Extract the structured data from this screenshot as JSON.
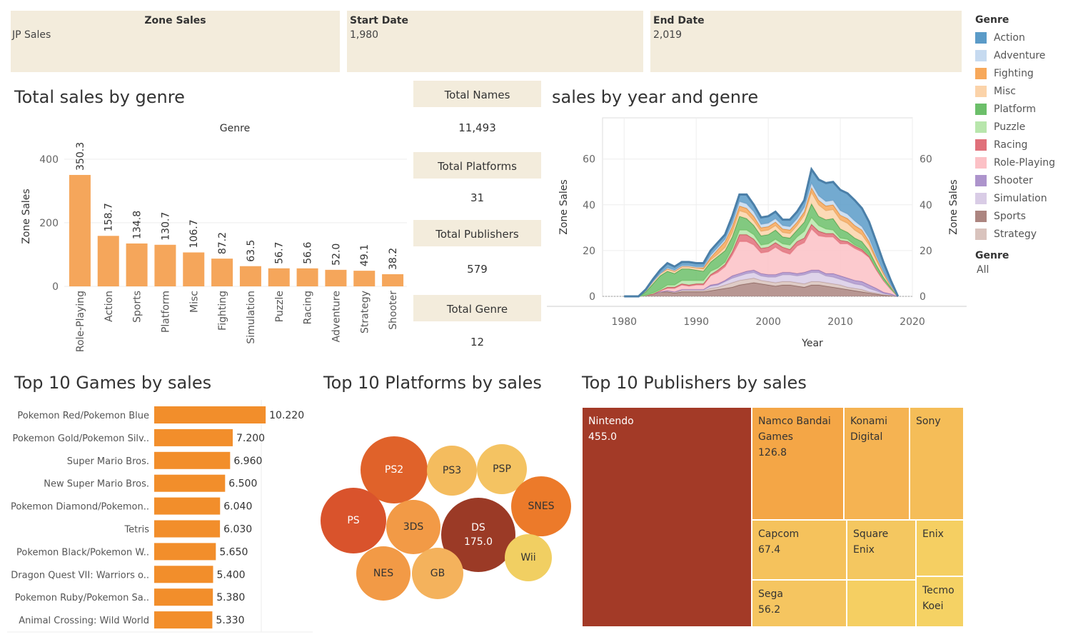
{
  "filters": {
    "zone": {
      "title": "Zone Sales",
      "value": "JP Sales"
    },
    "start": {
      "title": "Start Date",
      "value": "1,980"
    },
    "end": {
      "title": "End Date",
      "value": "2,019"
    }
  },
  "legend": {
    "title": "Genre",
    "items": [
      {
        "label": "Action",
        "color": "#5b9bc8"
      },
      {
        "label": "Adventure",
        "color": "#c6daf0"
      },
      {
        "label": "Fighting",
        "color": "#f7a85a"
      },
      {
        "label": "Misc",
        "color": "#fbd3a9"
      },
      {
        "label": "Platform",
        "color": "#6cbf6a"
      },
      {
        "label": "Puzzle",
        "color": "#b8e6ac"
      },
      {
        "label": "Racing",
        "color": "#e0707a"
      },
      {
        "label": "Role-Playing",
        "color": "#fcc1c6"
      },
      {
        "label": "Shooter",
        "color": "#ad94cc"
      },
      {
        "label": "Simulation",
        "color": "#d9cce6"
      },
      {
        "label": "Sports",
        "color": "#ac8580"
      },
      {
        "label": "Strategy",
        "color": "#d9c3bd"
      }
    ],
    "filter_title": "Genre",
    "filter_value": "All"
  },
  "titles": {
    "genre": "Total sales by genre",
    "year": "sales by year and genre",
    "games": "Top 10 Games by sales",
    "platforms": "Top 10 Platforms by sales",
    "publishers": "Top 10 Publishers by sales"
  },
  "kpis": [
    {
      "label": "Total Names",
      "value": "11,493"
    },
    {
      "label": "Total Platforms",
      "value": "31"
    },
    {
      "label": "Total Publishers",
      "value": "579"
    },
    {
      "label": "Total Genre",
      "value": "12"
    }
  ],
  "chart_data": [
    {
      "type": "bar",
      "title": "Total sales by genre",
      "header": "Genre",
      "ylabel": "Zone Sales",
      "color": "#f5a65b",
      "categories": [
        "Role-Playing",
        "Action",
        "Sports",
        "Platform",
        "Misc",
        "Fighting",
        "Simulation",
        "Puzzle",
        "Racing",
        "Adventure",
        "Strategy",
        "Shooter"
      ],
      "values": [
        350.3,
        158.7,
        134.8,
        130.7,
        106.7,
        87.2,
        63.5,
        56.7,
        56.6,
        52.0,
        49.1,
        38.2
      ],
      "labels": [
        "350.3",
        "158.7",
        "134.8",
        "130.7",
        "106.7",
        "87.2",
        "63.5",
        "56.7",
        "56.6",
        "52.0",
        "49.1",
        "38.2"
      ],
      "yticks": [
        "0",
        "200",
        "400"
      ],
      "ylim": [
        0,
        440
      ]
    },
    {
      "type": "area",
      "title": "sales by year and genre",
      "xlabel": "Year",
      "ylabel": "Zone Sales",
      "ylabel_right": "Zone Sales",
      "xticks": [
        "1980",
        "1990",
        "2000",
        "2010",
        "2020"
      ],
      "yticks": [
        "0",
        "20",
        "40",
        "60"
      ],
      "xlim": [
        1977,
        2020
      ],
      "ylim": [
        0,
        78
      ],
      "x": [
        1980,
        1981,
        1982,
        1983,
        1984,
        1985,
        1986,
        1987,
        1988,
        1989,
        1990,
        1991,
        1992,
        1993,
        1994,
        1995,
        1996,
        1997,
        1998,
        1999,
        2000,
        2001,
        2002,
        2003,
        2004,
        2005,
        2006,
        2007,
        2008,
        2009,
        2010,
        2011,
        2012,
        2013,
        2014,
        2015,
        2016,
        2017,
        2018
      ],
      "series": [
        {
          "name": "Sports",
          "values": [
            0,
            0,
            0,
            0.5,
            1,
            2,
            2,
            1.5,
            2,
            2,
            2,
            2,
            2.5,
            3,
            3.5,
            4,
            5,
            5.5,
            6,
            5.5,
            5,
            4.5,
            5,
            5,
            4.5,
            4,
            5,
            5,
            4.5,
            4,
            3.5,
            3,
            2.5,
            2,
            1.5,
            1,
            0.5,
            0.3,
            0
          ]
        },
        {
          "name": "Strategy",
          "values": [
            0,
            0,
            0,
            0,
            0,
            0,
            0.5,
            0.5,
            0.5,
            0.5,
            0.5,
            0.5,
            1,
            1,
            1.5,
            2,
            2,
            2,
            2,
            1.5,
            1.5,
            1.5,
            1.5,
            1.5,
            1.5,
            1.5,
            1.5,
            1.5,
            1.5,
            1.5,
            1.5,
            1,
            1,
            1,
            0.5,
            0.5,
            0.3,
            0.2,
            0
          ]
        },
        {
          "name": "Simulation",
          "values": [
            0,
            0,
            0,
            0,
            0,
            0,
            0,
            0,
            0.5,
            0.5,
            0.5,
            0.5,
            1,
            1,
            1.5,
            2,
            2,
            2.5,
            2.5,
            2,
            2,
            2.5,
            3,
            3,
            3,
            4,
            4,
            4,
            3,
            3,
            2.5,
            2.5,
            2,
            2,
            1.5,
            1,
            0.5,
            0.3,
            0
          ]
        },
        {
          "name": "Shooter",
          "values": [
            0,
            0,
            0,
            0,
            0,
            0,
            0,
            0,
            0,
            0,
            0,
            0,
            0.5,
            0.5,
            0.5,
            1,
            1,
            1,
            1,
            1,
            1,
            1,
            1,
            1,
            1,
            1,
            1,
            1,
            1,
            1.5,
            1.5,
            1.5,
            1.5,
            1.5,
            1.5,
            1,
            0.5,
            0.3,
            0
          ]
        },
        {
          "name": "Role-Playing",
          "values": [
            0,
            0,
            0,
            0,
            0,
            0.5,
            1,
            1.5,
            2,
            1.5,
            2,
            2,
            4,
            5,
            6,
            9,
            14,
            13,
            11,
            9,
            10,
            12,
            9,
            8,
            12,
            13,
            18,
            15,
            16,
            16,
            14,
            15,
            14,
            13,
            12,
            8,
            5,
            2,
            0
          ]
        },
        {
          "name": "Racing",
          "values": [
            0,
            0,
            0,
            0,
            0,
            0,
            0.5,
            0.5,
            0.5,
            0.5,
            0.5,
            0.5,
            0.5,
            1,
            1,
            1.5,
            3,
            3,
            2.5,
            2,
            2,
            2,
            2,
            2,
            2,
            2,
            2,
            2,
            1.5,
            1.5,
            1.5,
            1,
            1,
            1,
            0.5,
            0.5,
            0.3,
            0.2,
            0
          ]
        },
        {
          "name": "Puzzle",
          "values": [
            0,
            0,
            0,
            0,
            0.5,
            0.5,
            1,
            1,
            1.5,
            2,
            1.5,
            1.5,
            1.5,
            1,
            1,
            1.5,
            2,
            2,
            2,
            1.5,
            1.5,
            1.5,
            1.5,
            2,
            2,
            3,
            3,
            2.5,
            2,
            1.5,
            1,
            1,
            0.5,
            0.5,
            0.5,
            0.3,
            0.2,
            0.1,
            0
          ]
        },
        {
          "name": "Platform",
          "values": [
            0,
            0,
            0,
            1.5,
            4,
            6,
            6,
            5,
            5,
            5,
            4.5,
            4,
            4,
            5,
            5,
            5,
            6,
            5,
            4,
            4,
            4,
            4,
            3,
            3,
            3,
            4,
            6,
            4,
            4,
            5,
            4,
            3,
            3,
            3,
            2,
            1.5,
            1,
            0.5,
            0
          ]
        },
        {
          "name": "Misc",
          "values": [
            0,
            0,
            0,
            0.5,
            1,
            1,
            1,
            1,
            1,
            1,
            1,
            1,
            1,
            1,
            1.5,
            2,
            2.5,
            2.5,
            2,
            2,
            2,
            2,
            2,
            2,
            2,
            3,
            5,
            5,
            4,
            4,
            4,
            4,
            3.5,
            3,
            2.5,
            2,
            1.5,
            0.5,
            0
          ]
        },
        {
          "name": "Fighting",
          "values": [
            0,
            0,
            0,
            0,
            0,
            0,
            0,
            0,
            0,
            0,
            0,
            0.5,
            1,
            2,
            2.5,
            2.5,
            2,
            2,
            2,
            1.5,
            1.5,
            1.5,
            1.5,
            1.5,
            1.5,
            1.5,
            2,
            2,
            2,
            2,
            2,
            2,
            2,
            2,
            1.5,
            1,
            0.5,
            0.3,
            0
          ]
        },
        {
          "name": "Adventure",
          "values": [
            0,
            0,
            0,
            0,
            0,
            0,
            0.5,
            0.5,
            0.5,
            0.5,
            0.5,
            0.5,
            1,
            1,
            1,
            1.5,
            2,
            2,
            2,
            1.5,
            1.5,
            1.5,
            1.5,
            1.5,
            1.5,
            2,
            2,
            2,
            2,
            2,
            2,
            2,
            2,
            1.5,
            1.5,
            1,
            0.5,
            0.3,
            0
          ]
        },
        {
          "name": "Action",
          "values": [
            0,
            0,
            0,
            0.5,
            1,
            1.5,
            2,
            1.5,
            1.5,
            1.5,
            1.5,
            1.5,
            2,
            2,
            2,
            3,
            3,
            4,
            3,
            3,
            3,
            3,
            2.5,
            3,
            3,
            3,
            6,
            7,
            8,
            8,
            9,
            9,
            9,
            8,
            7,
            6,
            4,
            2,
            0
          ]
        }
      ]
    },
    {
      "type": "bar",
      "title": "Top 10 Games by sales",
      "color": "#f28e2b",
      "categories": [
        "Pokemon Red/Pokemon Blue",
        "Pokemon Gold/Pokemon Silv..",
        "Super Mario Bros.",
        "New Super Mario Bros.",
        "Pokemon Diamond/Pokemon..",
        "Tetris",
        "Pokemon Black/Pokemon W..",
        "Dragon Quest VII: Warriors o..",
        "Pokemon Ruby/Pokemon Sa..",
        "Animal Crossing: Wild World"
      ],
      "values": [
        10.22,
        7.2,
        6.96,
        6.5,
        6.04,
        6.03,
        5.65,
        5.4,
        5.38,
        5.33
      ],
      "labels": [
        "10.220",
        "7.200",
        "6.960",
        "6.500",
        "6.040",
        "6.030",
        "5.650",
        "5.400",
        "5.380",
        "5.330"
      ],
      "xlim": [
        0,
        10.8
      ]
    },
    {
      "type": "bubble",
      "title": "Top 10 Platforms by sales",
      "categories": [
        "DS",
        "PS2",
        "PS",
        "3DS",
        "NES",
        "GB",
        "PS3",
        "PSP",
        "SNES",
        "Wii"
      ],
      "value_labels": [
        "175.0",
        "",
        "",
        "",
        "",
        "",
        "",
        "",
        "",
        ""
      ],
      "colors": [
        "#9b3a26",
        "#e0622a",
        "#d9532c",
        "#f29a46",
        "#f29a46",
        "#f4b25c",
        "#f4bc5e",
        "#f4c362",
        "#ec7a2a",
        "#f1cf62"
      ],
      "text_colors": [
        "#ffffff",
        "#ffffff",
        "#ffffff",
        "#333333",
        "#333333",
        "#333333",
        "#333333",
        "#333333",
        "#333333",
        "#333333"
      ]
    },
    {
      "type": "treemap",
      "title": "Top 10 Publishers by sales",
      "categories": [
        "Nintendo",
        "Namco Bandai Games",
        "Konami Digital",
        "Sony",
        "Capcom",
        "Square Enix",
        "Enix",
        "Sega",
        "",
        "Tecmo Koei"
      ],
      "value_labels": [
        "455.0",
        "126.8",
        "",
        "",
        "67.4",
        "",
        "",
        "56.2",
        "",
        ""
      ],
      "colors": [
        "#a33a27",
        "#f4a646",
        "#f5b352",
        "#f5bd58",
        "#f5c25c",
        "#f4c760",
        "#f5cf62",
        "#f5c560",
        "#f5cf62",
        "#f5d264"
      ],
      "text_colors": [
        "#ffffff",
        "#333333",
        "#333333",
        "#333333",
        "#333333",
        "#333333",
        "#333333",
        "#333333",
        "#333333",
        "#333333"
      ]
    }
  ]
}
